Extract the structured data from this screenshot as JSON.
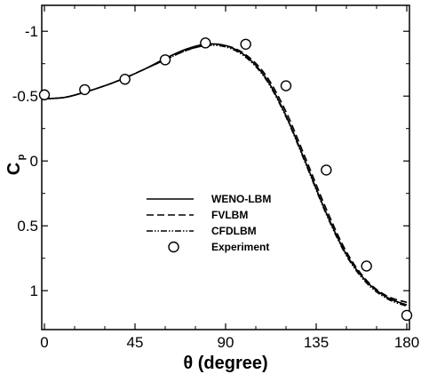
{
  "chart_data": {
    "type": "line",
    "xlabel": "θ (degree)",
    "ylabel_main": "C",
    "ylabel_sub": "p",
    "xlim": [
      0,
      180
    ],
    "ylim": [
      1.3,
      -1.2
    ],
    "y_inverted": true,
    "xticks": [
      0,
      45,
      90,
      135,
      180
    ],
    "xtick_labels": [
      "0",
      "45",
      "90",
      "135",
      "180"
    ],
    "yticks": [
      -1,
      -0.5,
      0,
      0.5,
      1
    ],
    "ytick_labels": [
      "-1",
      "-0.5",
      "0",
      "0.5",
      "1"
    ],
    "grid": false,
    "legend_position": "center-left",
    "series": [
      {
        "name": "WENO-LBM",
        "style": "solid",
        "x": [
          0,
          10,
          20,
          30,
          40,
          50,
          60,
          70,
          80,
          90,
          100,
          110,
          120,
          130,
          140,
          150,
          160,
          170,
          180
        ],
        "y": [
          -0.48,
          -0.49,
          -0.53,
          -0.58,
          -0.64,
          -0.71,
          -0.79,
          -0.86,
          -0.9,
          -0.89,
          -0.81,
          -0.64,
          -0.35,
          0.02,
          0.4,
          0.72,
          0.93,
          1.05,
          1.11
        ]
      },
      {
        "name": "FVLBM",
        "style": "dashed",
        "x": [
          0,
          10,
          20,
          30,
          40,
          50,
          60,
          70,
          80,
          90,
          100,
          110,
          120,
          130,
          140,
          150,
          160,
          170,
          180
        ],
        "y": [
          -0.48,
          -0.49,
          -0.53,
          -0.58,
          -0.64,
          -0.71,
          -0.78,
          -0.85,
          -0.89,
          -0.89,
          -0.82,
          -0.66,
          -0.38,
          -0.01,
          0.37,
          0.7,
          0.92,
          1.04,
          1.09
        ]
      },
      {
        "name": "CFDLBM",
        "style": "dashdotdot",
        "x": [
          0,
          10,
          20,
          30,
          40,
          50,
          60,
          70,
          80,
          90,
          100,
          110,
          120,
          130,
          140,
          150,
          160,
          170,
          180
        ],
        "y": [
          -0.48,
          -0.49,
          -0.53,
          -0.58,
          -0.64,
          -0.71,
          -0.78,
          -0.85,
          -0.89,
          -0.88,
          -0.8,
          -0.63,
          -0.34,
          0.03,
          0.41,
          0.73,
          0.94,
          1.06,
          1.12
        ]
      },
      {
        "name": "Experiment",
        "style": "marker",
        "x": [
          0,
          20,
          40,
          60,
          80,
          100,
          120,
          140,
          160,
          180
        ],
        "y": [
          -0.51,
          -0.55,
          -0.63,
          -0.78,
          -0.91,
          -0.9,
          -0.58,
          0.07,
          0.81,
          1.19
        ]
      }
    ]
  }
}
